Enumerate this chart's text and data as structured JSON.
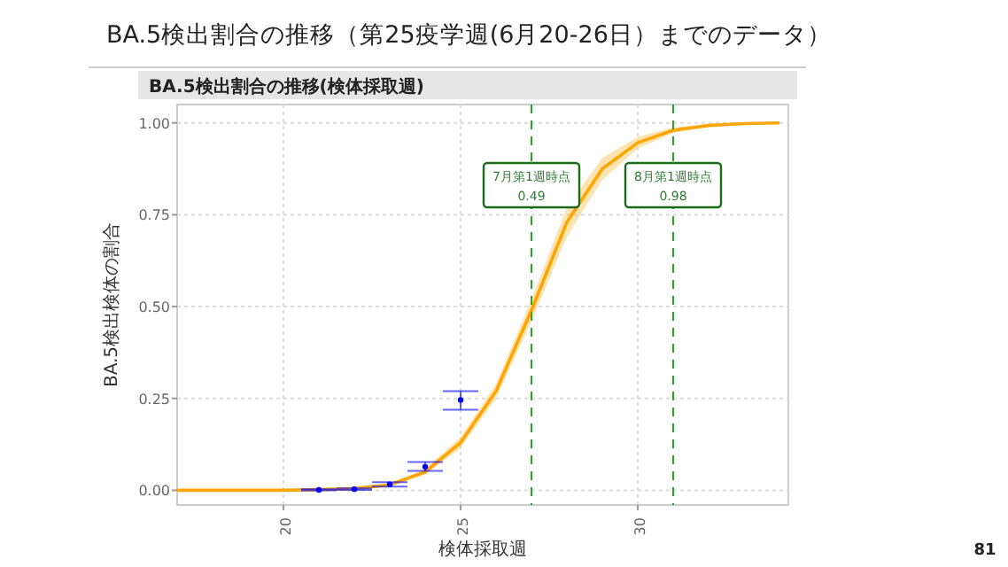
{
  "chart_data": {
    "type": "line",
    "title": "BA.5検出割合の推移（第25疫学週(6月20-26日）までのデータ）",
    "subtitle": "BA.5検出割合の推移(検体採取週)",
    "xlabel": "検体採取週",
    "ylabel": "BA.5検出検体の割合",
    "xlim": [
      17,
      34.25
    ],
    "xticks": [
      20,
      25,
      30
    ],
    "ylim": [
      -0.04,
      1.05
    ],
    "yticks": [
      {
        "value": 0,
        "label": "0.00"
      },
      {
        "value": 0.25,
        "label": "0.25"
      },
      {
        "value": 0.5,
        "label": "0.50"
      },
      {
        "value": 0.75,
        "label": "0.75"
      },
      {
        "value": 1,
        "label": "1.00"
      }
    ],
    "grid": true,
    "series": [
      {
        "color": "#ffa500",
        "x": [
          17,
          18,
          19,
          20,
          21,
          22,
          23,
          24,
          25,
          26,
          27,
          28,
          29,
          30,
          31,
          32,
          33,
          34
        ],
        "values": [
          0,
          0,
          0,
          0,
          0.002,
          0.005,
          0.015,
          0.05,
          0.13,
          0.27,
          0.49,
          0.73,
          0.875,
          0.946,
          0.98,
          0.993,
          0.998,
          1
        ],
        "lower": [
          0,
          0,
          0,
          0,
          0.001,
          0.003,
          0.011,
          0.042,
          0.115,
          0.25,
          0.46,
          0.69,
          0.845,
          0.93,
          0.972,
          0.99,
          0.997,
          1
        ],
        "upper": [
          0,
          0,
          0,
          0,
          0.003,
          0.007,
          0.019,
          0.058,
          0.145,
          0.29,
          0.52,
          0.77,
          0.905,
          0.962,
          0.988,
          0.996,
          0.999,
          1
        ]
      },
      {
        "type": "scatter",
        "color": "#0000ff",
        "x": [
          21,
          22,
          23,
          24,
          25
        ],
        "values": [
          0.001,
          0.003,
          0.016,
          0.064,
          0.246
        ],
        "errors": [
          [
            0,
            0.003
          ],
          [
            0.001,
            0.005
          ],
          [
            0.01,
            0.022
          ],
          [
            0.053,
            0.077
          ],
          [
            0.219,
            0.27
          ]
        ]
      }
    ],
    "ref_lines": [
      {
        "axis": "x",
        "value": 27,
        "color": "#33a02c",
        "line_style": "dashed",
        "label": "7月第1週時点\n0.49"
      },
      {
        "axis": "x",
        "value": 31,
        "color": "#33a02c",
        "line_style": "dashed",
        "label": "8月第1週時点\n0.98"
      }
    ],
    "annotations": [
      "81"
    ]
  }
}
